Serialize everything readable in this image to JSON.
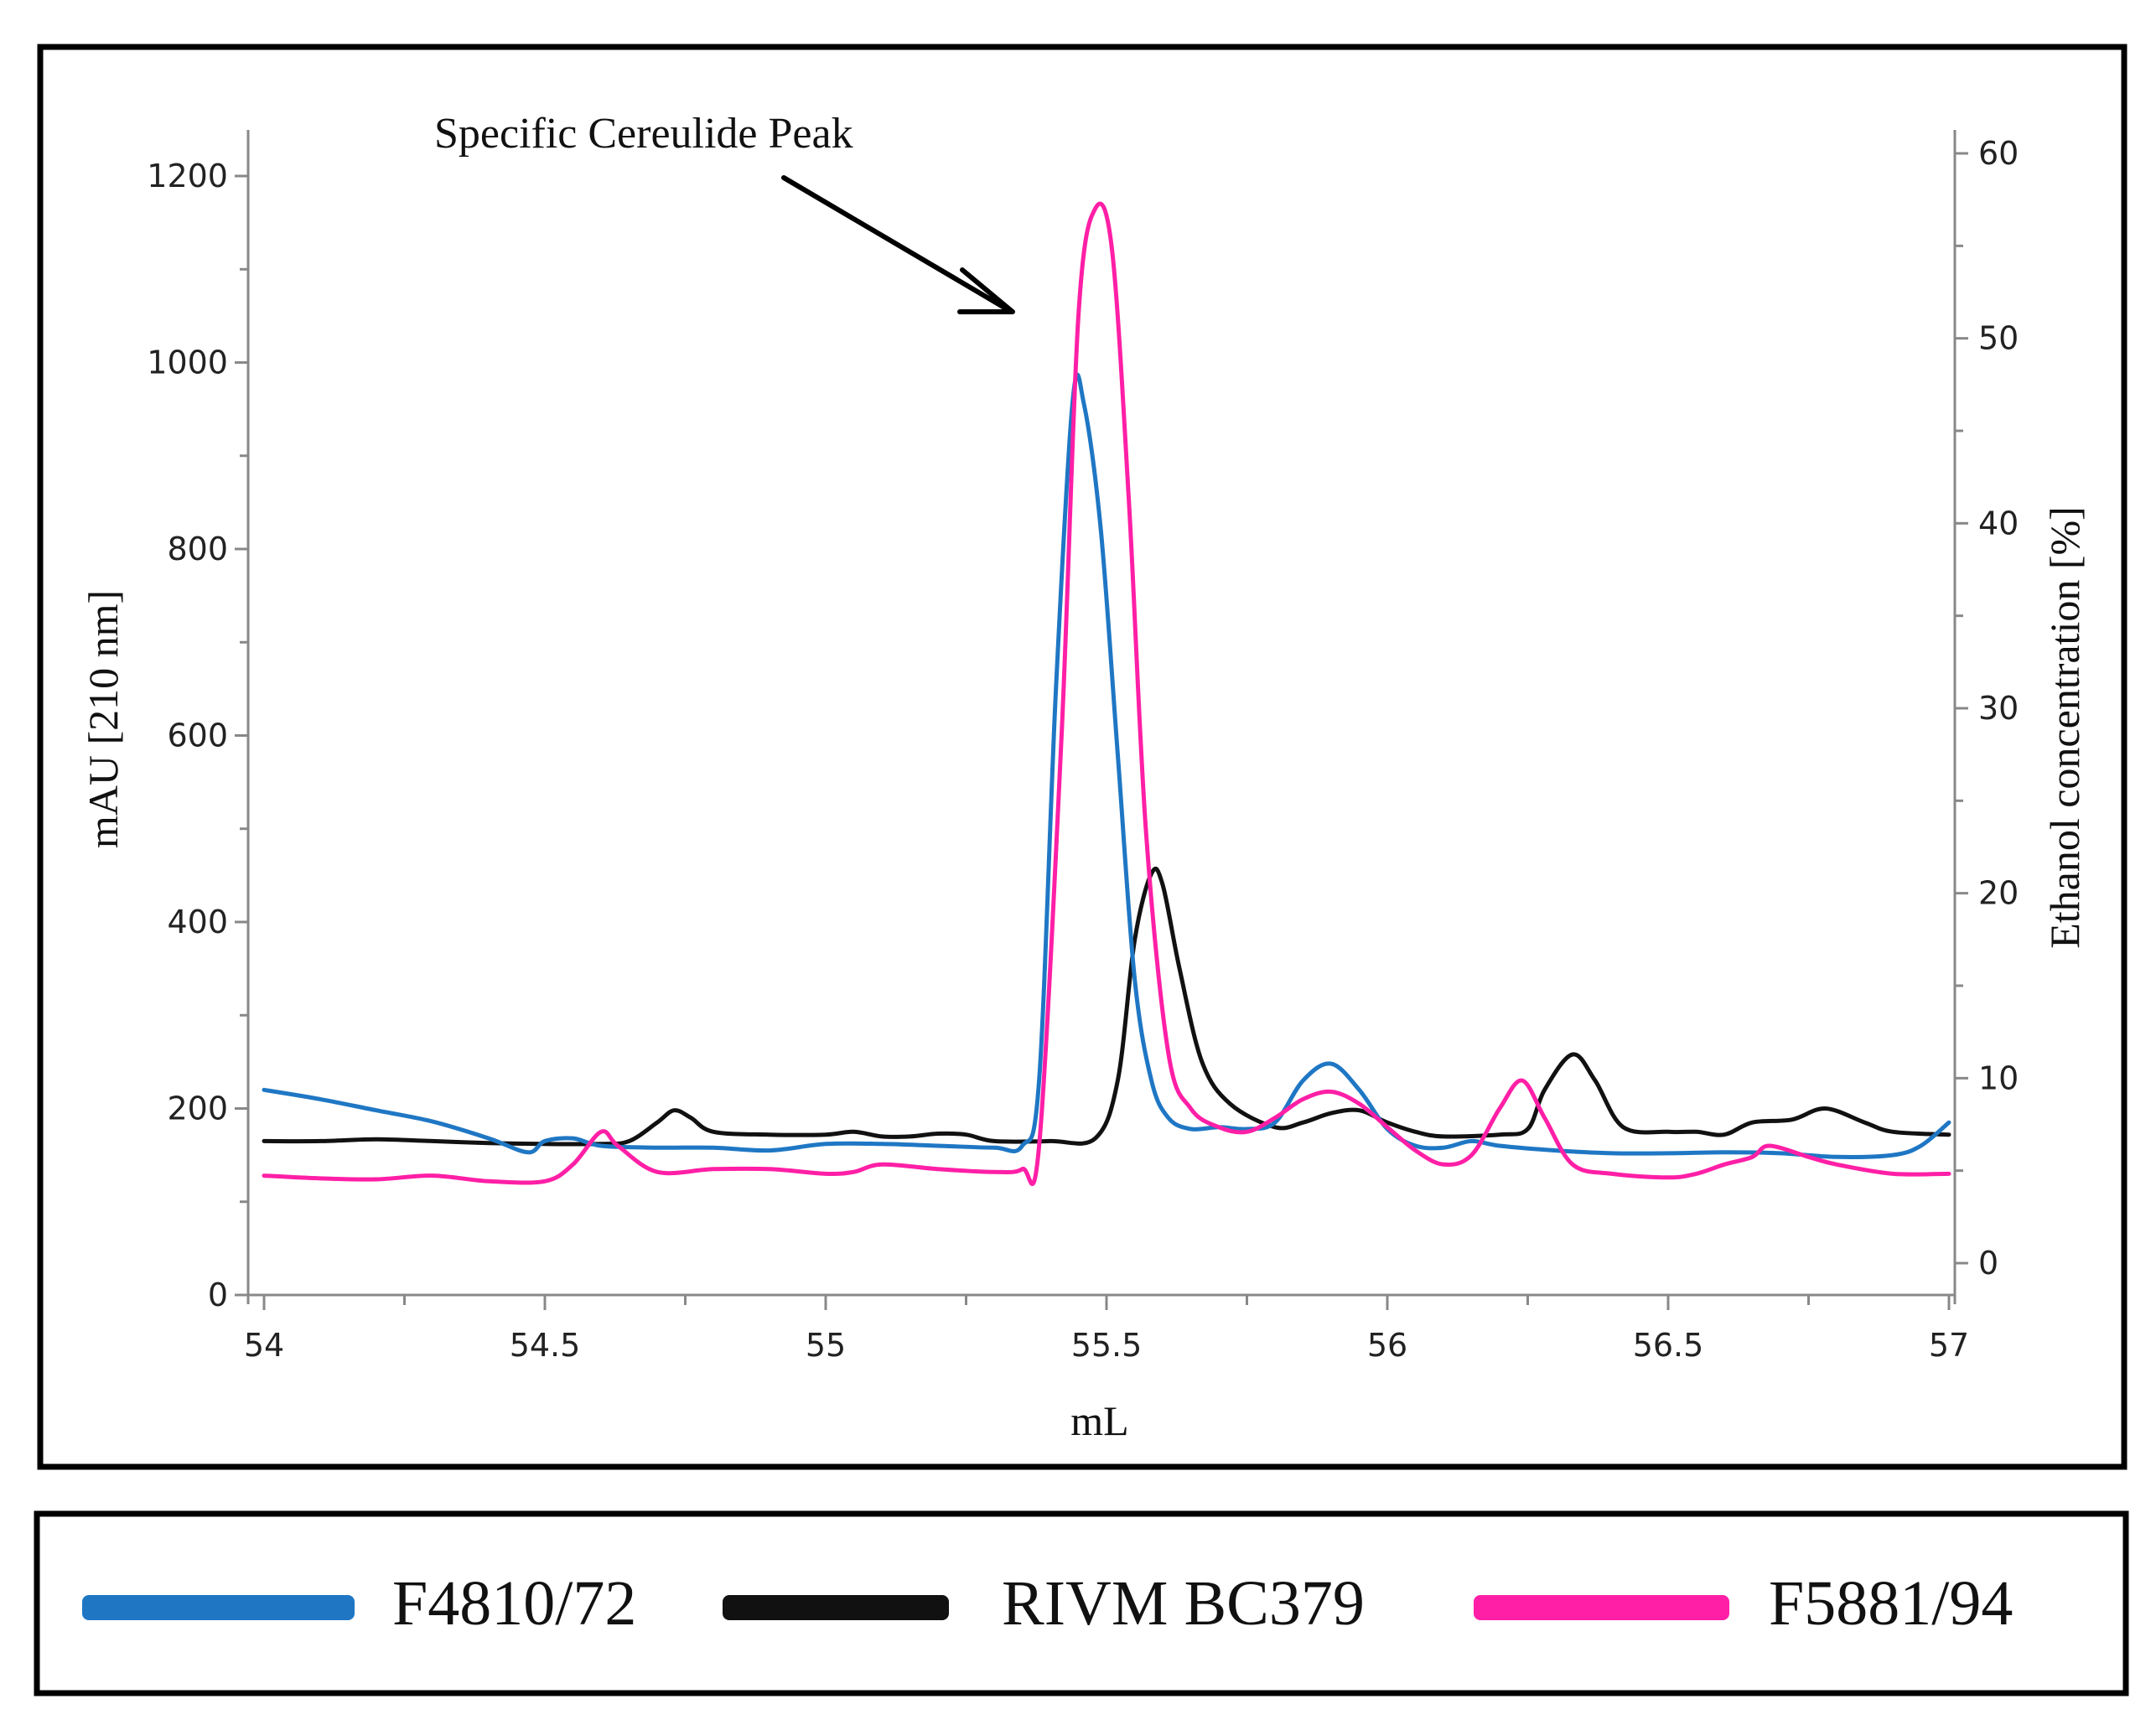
{
  "chart_data": {
    "type": "line",
    "title": "",
    "annotation": "Specific Cereulide Peak",
    "xlabel": "mL",
    "ylabel": "mAU [210 nm]",
    "y2label": "Ethanol concentration [%]",
    "xlim": [
      54,
      57
    ],
    "ylim": [
      0,
      1200
    ],
    "y2lim": [
      0,
      60
    ],
    "x_ticks": [
      "54",
      "54.5",
      "55",
      "55.5",
      "56",
      "56.5",
      "57"
    ],
    "y_ticks": [
      "0",
      "200",
      "400",
      "600",
      "800",
      "1000",
      "1200"
    ],
    "y2_ticks": [
      "0",
      "10",
      "20",
      "30",
      "40",
      "50",
      "60"
    ],
    "legend_position": "bottom",
    "series": [
      {
        "name": "F4810/72",
        "color": "#1f77c4",
        "points": [
          [
            54,
            220
          ],
          [
            54.1,
            210
          ],
          [
            54.2,
            198
          ],
          [
            54.3,
            186
          ],
          [
            54.4,
            168
          ],
          [
            54.47,
            153
          ],
          [
            54.5,
            165
          ],
          [
            54.55,
            168
          ],
          [
            54.6,
            160
          ],
          [
            54.7,
            158
          ],
          [
            54.8,
            158
          ],
          [
            54.9,
            155
          ],
          [
            55,
            162
          ],
          [
            55.1,
            162
          ],
          [
            55.2,
            160
          ],
          [
            55.3,
            158
          ],
          [
            55.35,
            160
          ],
          [
            55.38,
            230
          ],
          [
            55.41,
            650
          ],
          [
            55.44,
            960
          ],
          [
            55.46,
            955
          ],
          [
            55.49,
            820
          ],
          [
            55.52,
            580
          ],
          [
            55.55,
            340
          ],
          [
            55.58,
            230
          ],
          [
            55.61,
            190
          ],
          [
            55.65,
            178
          ],
          [
            55.7,
            180
          ],
          [
            55.75,
            178
          ],
          [
            55.8,
            185
          ],
          [
            55.85,
            230
          ],
          [
            55.9,
            248
          ],
          [
            55.95,
            220
          ],
          [
            56,
            178
          ],
          [
            56.05,
            160
          ],
          [
            56.1,
            158
          ],
          [
            56.15,
            165
          ],
          [
            56.2,
            160
          ],
          [
            56.3,
            155
          ],
          [
            56.4,
            152
          ],
          [
            56.5,
            152
          ],
          [
            56.6,
            153
          ],
          [
            56.7,
            152
          ],
          [
            56.8,
            148
          ],
          [
            56.9,
            150
          ],
          [
            56.95,
            160
          ],
          [
            57,
            185
          ]
        ]
      },
      {
        "name": "RIVM BC379",
        "color": "#111111",
        "points": [
          [
            54,
            165
          ],
          [
            54.1,
            165
          ],
          [
            54.2,
            167
          ],
          [
            54.3,
            165
          ],
          [
            54.4,
            163
          ],
          [
            54.5,
            162
          ],
          [
            54.6,
            162
          ],
          [
            54.65,
            165
          ],
          [
            54.7,
            185
          ],
          [
            54.73,
            198
          ],
          [
            54.76,
            190
          ],
          [
            54.8,
            175
          ],
          [
            54.9,
            172
          ],
          [
            55,
            172
          ],
          [
            55.05,
            175
          ],
          [
            55.1,
            170
          ],
          [
            55.15,
            170
          ],
          [
            55.2,
            173
          ],
          [
            55.25,
            172
          ],
          [
            55.3,
            165
          ],
          [
            55.4,
            165
          ],
          [
            55.48,
            168
          ],
          [
            55.52,
            230
          ],
          [
            55.55,
            380
          ],
          [
            55.58,
            452
          ],
          [
            55.6,
            440
          ],
          [
            55.63,
            350
          ],
          [
            55.67,
            250
          ],
          [
            55.72,
            205
          ],
          [
            55.8,
            180
          ],
          [
            55.85,
            185
          ],
          [
            55.9,
            195
          ],
          [
            55.95,
            198
          ],
          [
            56,
            185
          ],
          [
            56.05,
            175
          ],
          [
            56.1,
            170
          ],
          [
            56.2,
            172
          ],
          [
            56.25,
            178
          ],
          [
            56.28,
            220
          ],
          [
            56.33,
            258
          ],
          [
            56.37,
            230
          ],
          [
            56.42,
            180
          ],
          [
            56.5,
            175
          ],
          [
            56.55,
            175
          ],
          [
            56.6,
            172
          ],
          [
            56.65,
            185
          ],
          [
            56.72,
            188
          ],
          [
            56.78,
            200
          ],
          [
            56.85,
            185
          ],
          [
            56.9,
            175
          ],
          [
            57,
            172
          ]
        ]
      },
      {
        "name": "F5881/94",
        "color": "#ff1fa6",
        "points": [
          [
            54,
            128
          ],
          [
            54.1,
            125
          ],
          [
            54.2,
            124
          ],
          [
            54.3,
            128
          ],
          [
            54.4,
            122
          ],
          [
            54.5,
            122
          ],
          [
            54.55,
            140
          ],
          [
            54.6,
            175
          ],
          [
            54.63,
            160
          ],
          [
            54.7,
            132
          ],
          [
            54.8,
            135
          ],
          [
            54.9,
            135
          ],
          [
            55,
            130
          ],
          [
            55.05,
            132
          ],
          [
            55.1,
            140
          ],
          [
            55.2,
            135
          ],
          [
            55.3,
            132
          ],
          [
            55.35,
            135
          ],
          [
            55.38,
            160
          ],
          [
            55.42,
            600
          ],
          [
            55.45,
            1050
          ],
          [
            55.48,
            1165
          ],
          [
            55.51,
            1120
          ],
          [
            55.54,
            850
          ],
          [
            55.57,
            500
          ],
          [
            55.61,
            260
          ],
          [
            55.65,
            200
          ],
          [
            55.7,
            180
          ],
          [
            55.75,
            175
          ],
          [
            55.8,
            190
          ],
          [
            55.85,
            210
          ],
          [
            55.9,
            218
          ],
          [
            55.95,
            205
          ],
          [
            56,
            180
          ],
          [
            56.05,
            155
          ],
          [
            56.1,
            140
          ],
          [
            56.15,
            150
          ],
          [
            56.2,
            200
          ],
          [
            56.24,
            230
          ],
          [
            56.28,
            190
          ],
          [
            56.33,
            140
          ],
          [
            56.4,
            130
          ],
          [
            56.5,
            126
          ],
          [
            56.55,
            130
          ],
          [
            56.6,
            140
          ],
          [
            56.65,
            148
          ],
          [
            56.68,
            160
          ],
          [
            56.75,
            148
          ],
          [
            56.8,
            140
          ],
          [
            56.9,
            130
          ],
          [
            57,
            130
          ]
        ]
      }
    ]
  }
}
